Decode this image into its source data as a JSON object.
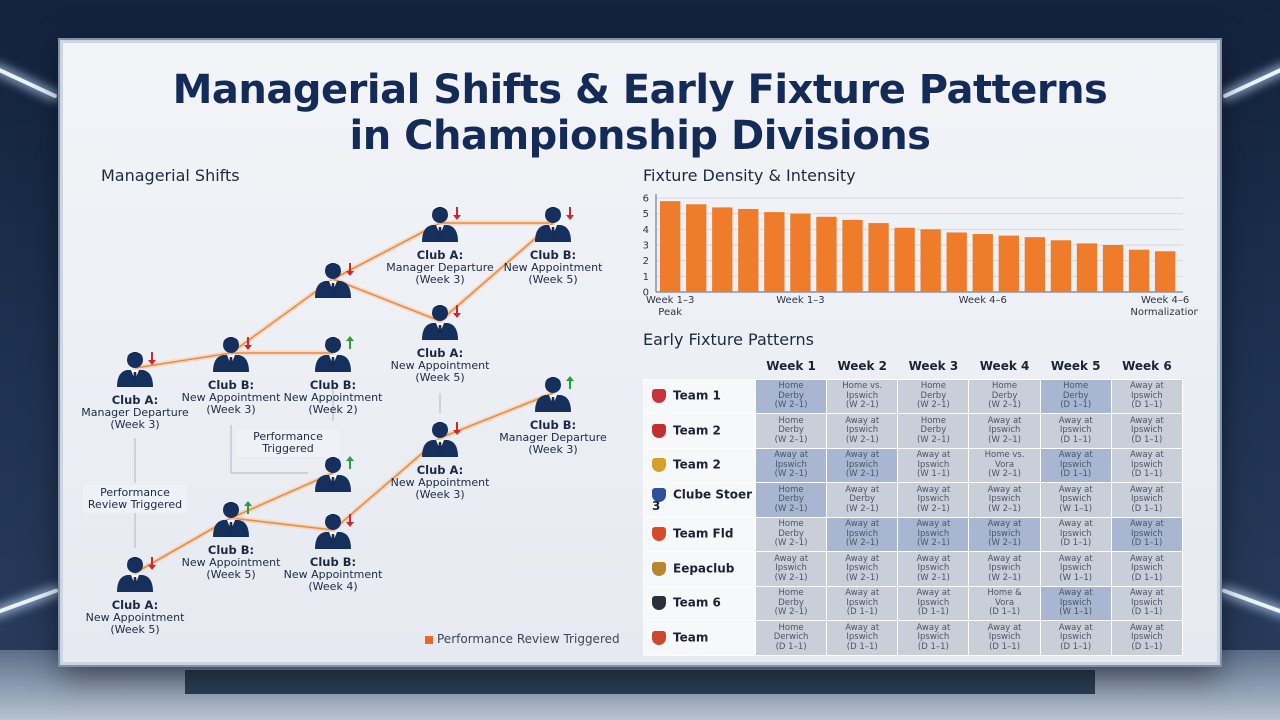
{
  "title_line1": "Managerial Shifts & Early Fixture Patterns",
  "title_line2": "in Championship Divisions",
  "managerial": {
    "section_title": "Managerial Shifts",
    "legend_label": "Performance Review Triggered",
    "nodes": [
      {
        "id": "n1",
        "head": "Club A:",
        "l2": "Manager Departure",
        "l3": "(Week 3)",
        "trend": "down"
      },
      {
        "id": "n2",
        "head": "Club B:",
        "l2": "New Appointment",
        "l3": "(Week 3)",
        "trend": "down"
      },
      {
        "id": "n3",
        "head": "",
        "l2": "",
        "l3": "",
        "trend": "down"
      },
      {
        "id": "n4",
        "head": "Club A:",
        "l2": "Manager Departure",
        "l3": "(Week 3)",
        "trend": "down"
      },
      {
        "id": "n5",
        "head": "Club B:",
        "l2": "New Appointment",
        "l3": "(Week 5)",
        "trend": "down"
      },
      {
        "id": "n6",
        "head": "Club B:",
        "l2": "New Appointment",
        "l3": "(Week 2)",
        "trend": "up"
      },
      {
        "id": "n7",
        "head": "Club A:",
        "l2": "New Appointment",
        "l3": "(Week 5)",
        "trend": "down"
      },
      {
        "id": "n8",
        "head": "",
        "l2": "",
        "l3": "",
        "trend": "up"
      },
      {
        "id": "n9",
        "head": "Club A:",
        "l2": "New Appointment",
        "l3": "(Week 3)",
        "trend": "down"
      },
      {
        "id": "n10",
        "head": "Club B:",
        "l2": "Manager Departure",
        "l3": "(Week 3)",
        "trend": "up"
      },
      {
        "id": "n11",
        "head": "Club B:",
        "l2": "New Appointment",
        "l3": "(Week 5)",
        "trend": "up"
      },
      {
        "id": "n12",
        "head": "Club B:",
        "l2": "New Appointment",
        "l3": "(Week 4)",
        "trend": "down"
      },
      {
        "id": "n13",
        "head": "Club A:",
        "l2": "New Appointment",
        "l3": "(Week 5)",
        "trend": "down"
      }
    ],
    "annotations": [
      {
        "id": "a1",
        "l1": "Performance",
        "l2": "Review Triggered"
      },
      {
        "id": "a2",
        "l1": "Performance",
        "l2": "Triggered"
      }
    ]
  },
  "chart_data": {
    "type": "bar",
    "title": "Fixture Density & Intensity",
    "values": [
      5.8,
      5.6,
      5.4,
      5.3,
      5.1,
      5.0,
      4.8,
      4.6,
      4.4,
      4.1,
      4.0,
      3.8,
      3.7,
      3.6,
      3.5,
      3.3,
      3.1,
      3.0,
      2.7,
      2.6
    ],
    "ylim": [
      0,
      6
    ],
    "yticks": [
      0,
      1,
      2,
      3,
      4,
      5,
      6
    ],
    "grid": true,
    "x_labels": [
      {
        "index": 0,
        "l1": "Week 1–3",
        "l2": "Peak"
      },
      {
        "index": 5,
        "l1": "Week 1–3",
        "l2": ""
      },
      {
        "index": 12,
        "l1": "Week 4–6",
        "l2": ""
      },
      {
        "index": 19,
        "l1": "Week 4–6",
        "l2": "Normalization"
      }
    ],
    "bar_color": "#ef7c2a"
  },
  "fixtures": {
    "section_title": "Early Fixture Patterns",
    "weeks": [
      "Week 1",
      "Week 2",
      "Week 3",
      "Week 4",
      "Week 5",
      "Week 6"
    ],
    "rows": [
      {
        "team": "Team 1",
        "crest": "#c8333a",
        "cells": [
          [
            "Home",
            "Derby",
            "(W 2–1)"
          ],
          [
            "Home vs.",
            "Ipswich",
            "(W 2–1)"
          ],
          [
            "Home",
            "Derby",
            "(W 2–1)"
          ],
          [
            "Home",
            "Derby",
            "(W 2–1)"
          ],
          [
            "Home",
            "Derby",
            "(D 1–1)"
          ],
          [
            "Away at",
            "Ipswich",
            "(D 1–1)"
          ]
        ],
        "hl": [
          1,
          0,
          0,
          0,
          1,
          0
        ]
      },
      {
        "team": "Team 2",
        "crest": "#c22f2f",
        "cells": [
          [
            "Home",
            "Derby",
            "(W 2–1)"
          ],
          [
            "Away at",
            "Ipswich",
            "(W 2–1)"
          ],
          [
            "Home",
            "Derby",
            "(W 2–1)"
          ],
          [
            "Away at",
            "Ipswich",
            "(W 2–1)"
          ],
          [
            "Away at",
            "Ipswich",
            "(D 1–1)"
          ],
          [
            "Away at",
            "Ipswich",
            "(D 1–1)"
          ]
        ],
        "hl": [
          0,
          0,
          0,
          0,
          0,
          0
        ]
      },
      {
        "team": "Team 2",
        "crest": "#d4a12a",
        "cells": [
          [
            "Away at",
            "Ipswich",
            "(W 2–1)"
          ],
          [
            "Away at",
            "Ipswich",
            "(W 2–1)"
          ],
          [
            "Away at",
            "Ipswich",
            "(W 1–1)"
          ],
          [
            "Home vs.",
            "Vora",
            "(W 2–1)"
          ],
          [
            "Away at",
            "Ipswich",
            "(D 1–1)"
          ],
          [
            "Away at",
            "Ipswich",
            "(D 1–1)"
          ]
        ],
        "hl": [
          1,
          1,
          0,
          0,
          1,
          0
        ]
      },
      {
        "team": "Clube Stoer 3",
        "crest": "#2f4f9a",
        "cells": [
          [
            "Home",
            "Derby",
            "(W 2–1)"
          ],
          [
            "Away at",
            "Derby",
            "(W 2–1)"
          ],
          [
            "Away at",
            "Ipswich",
            "(W 2–1)"
          ],
          [
            "Away at",
            "Ipswich",
            "(W 2–1)"
          ],
          [
            "Away at",
            "Ipswich",
            "(W 1–1)"
          ],
          [
            "Away at",
            "Ipswich",
            "(D 1–1)"
          ]
        ],
        "hl": [
          1,
          0,
          0,
          0,
          0,
          0
        ]
      },
      {
        "team": "Team Fld",
        "crest": "#d64a2a",
        "cells": [
          [
            "Home",
            "Derby",
            "(W 2–1)"
          ],
          [
            "Away at",
            "Ipswich",
            "(W 2–1)"
          ],
          [
            "Away at",
            "Ipswich",
            "(W 2–1)"
          ],
          [
            "Away at",
            "Ipswich",
            "(W 2–1)"
          ],
          [
            "Away at",
            "Ipswich",
            "(D 1–1)"
          ],
          [
            "Away at",
            "Ipswich",
            "(D 1–1)"
          ]
        ],
        "hl": [
          0,
          1,
          1,
          1,
          0,
          1
        ]
      },
      {
        "team": "Eepaclub",
        "crest": "#b8862e",
        "cells": [
          [
            "Away at",
            "Ipswich",
            "(W 2–1)"
          ],
          [
            "Away at",
            "Ipswich",
            "(W 2–1)"
          ],
          [
            "Away at",
            "Ipswich",
            "(W 2–1)"
          ],
          [
            "Away at",
            "Ipswich",
            "(W 2–1)"
          ],
          [
            "Away at",
            "Ipswich",
            "(W 1–1)"
          ],
          [
            "Away at",
            "Ipswich",
            "(D 1–1)"
          ]
        ],
        "hl": [
          0,
          0,
          0,
          0,
          0,
          0
        ]
      },
      {
        "team": "Team 6",
        "crest": "#2b2f3a",
        "cells": [
          [
            "Home",
            "Derby",
            "(W 2–1)"
          ],
          [
            "Away at",
            "Ipswich",
            "(D 1–1)"
          ],
          [
            "Away at",
            "Ipswich",
            "(D 1–1)"
          ],
          [
            "Home &",
            "Vora",
            "(D 1–1)"
          ],
          [
            "Away at",
            "Ipswich",
            "(W 1–1)"
          ],
          [
            "Away at",
            "Ipswich",
            "(D 1–1)"
          ]
        ],
        "hl": [
          0,
          0,
          0,
          0,
          1,
          0
        ]
      },
      {
        "team": "Team",
        "crest": "#c9482e",
        "cells": [
          [
            "Home",
            "Derwich",
            "(D 1–1)"
          ],
          [
            "Away at",
            "Ipswich",
            "(D 1–1)"
          ],
          [
            "Away at",
            "Ipswich",
            "(D 1–1)"
          ],
          [
            "Away at",
            "Ipswich",
            "(D 1–1)"
          ],
          [
            "Away at",
            "Ipswich",
            "(D 1–1)"
          ],
          [
            "Away at",
            "Ipswich",
            "(D 1–1)"
          ]
        ],
        "hl": [
          0,
          0,
          0,
          0,
          0,
          0
        ]
      }
    ]
  }
}
